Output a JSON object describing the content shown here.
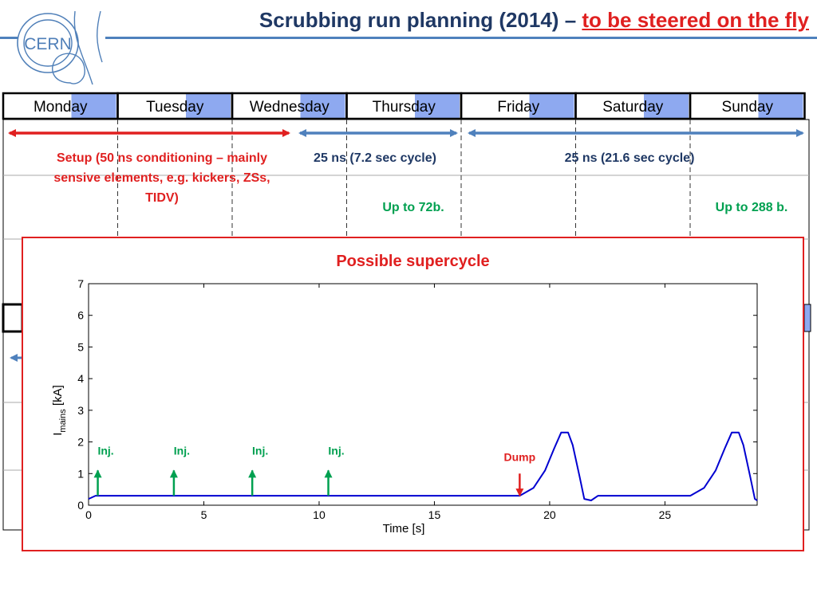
{
  "header": {
    "title_main": "Scrubbing run planning (2014) – ",
    "title_highlight": "to be steered on the fly",
    "logo_text": "CERN"
  },
  "colors": {
    "title": "#1f3864",
    "highlight": "#e02020",
    "day_accent": "#8ea9f0",
    "blue_arrow": "#4f81bd",
    "red_arrow": "#e02020",
    "green_text": "#00a050",
    "curve": "#0000d0"
  },
  "schedule": {
    "days": [
      {
        "prefix": "Mon",
        "suffix": "day"
      },
      {
        "prefix": "Tues",
        "suffix": "day"
      },
      {
        "prefix": "Wedne",
        "suffix": "sday"
      },
      {
        "prefix": "Thurs",
        "suffix": "day"
      },
      {
        "prefix": "Fri",
        "suffix": "day"
      },
      {
        "prefix": "Satur",
        "suffix": "day"
      },
      {
        "prefix": "Sun",
        "suffix": "day"
      }
    ],
    "phases": [
      {
        "label": "Setup (50 ns conditioning – mainly sensive elements, e.g. kickers, ZSs, TIDV)",
        "color": "red"
      },
      {
        "label": "25 ns (7.2 sec cycle)",
        "color": "blue"
      },
      {
        "label": "25 ns (21.6 sec cycle)",
        "color": "blue"
      }
    ],
    "notes": [
      {
        "label": "Up to 72b."
      },
      {
        "label": "Up to 288 b."
      }
    ]
  },
  "popup": {
    "title": "Possible supercycle"
  },
  "chart_data": {
    "type": "line",
    "title": "Possible supercycle",
    "xlabel": "Time [s]",
    "ylabel_main": "I",
    "ylabel_sub": "mains",
    "ylabel_unit": " [kA]",
    "xlim": [
      0,
      29
    ],
    "ylim": [
      0,
      7
    ],
    "xticks": [
      0,
      5,
      10,
      15,
      20,
      25
    ],
    "yticks": [
      0,
      1,
      2,
      3,
      4,
      5,
      6,
      7
    ],
    "grid": false,
    "series": [
      {
        "x": [
          0,
          0.3,
          18.7,
          19.3,
          19.8,
          20.2,
          20.5,
          20.8,
          21.0,
          21.3,
          21.5,
          21.8,
          22.1,
          26.1,
          26.7,
          27.2,
          27.6,
          27.9,
          28.2,
          28.4,
          28.7,
          28.9,
          29.0
        ],
        "y": [
          0.2,
          0.3,
          0.3,
          0.55,
          1.1,
          1.8,
          2.3,
          2.3,
          1.9,
          0.9,
          0.2,
          0.15,
          0.3,
          0.3,
          0.55,
          1.1,
          1.8,
          2.3,
          2.3,
          1.9,
          0.9,
          0.2,
          0.15
        ]
      }
    ],
    "annotations": [
      {
        "label": "Inj.",
        "x": 0.4,
        "y_from": 0.3,
        "y_to": 1.1,
        "color": "green"
      },
      {
        "label": "Inj.",
        "x": 3.7,
        "y_from": 0.3,
        "y_to": 1.1,
        "color": "green"
      },
      {
        "label": "Inj.",
        "x": 7.1,
        "y_from": 0.3,
        "y_to": 1.1,
        "color": "green"
      },
      {
        "label": "Inj.",
        "x": 10.4,
        "y_from": 0.3,
        "y_to": 1.1,
        "color": "green"
      },
      {
        "label": "Dump",
        "x": 18.7,
        "y_from": 1.0,
        "y_to": 0.3,
        "color": "red"
      }
    ]
  }
}
